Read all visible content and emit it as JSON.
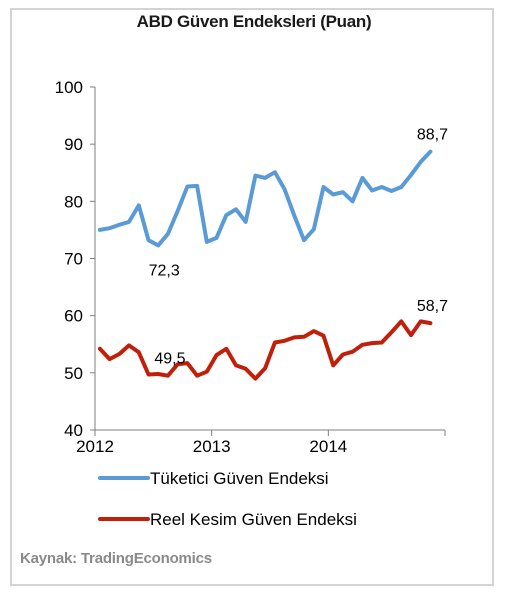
{
  "chart_data": {
    "type": "line",
    "title": "ABD Güven Endeksleri (Puan)",
    "source": "Kaynak: TradingEconomics",
    "ylim": [
      40,
      100
    ],
    "yticks": [
      "40",
      "50",
      "60",
      "70",
      "80",
      "90",
      "100"
    ],
    "xticks": [
      "2012",
      "2013",
      "2014"
    ],
    "grid": false,
    "legend_position": "bottom",
    "x": [
      "2012-01",
      "2012-02",
      "2012-03",
      "2012-04",
      "2012-05",
      "2012-06",
      "2012-07",
      "2012-08",
      "2012-09",
      "2012-10",
      "2012-11",
      "2012-12",
      "2013-01",
      "2013-02",
      "2013-03",
      "2013-04",
      "2013-05",
      "2013-06",
      "2013-07",
      "2013-08",
      "2013-09",
      "2013-10",
      "2013-11",
      "2013-12",
      "2014-01",
      "2014-02",
      "2014-03",
      "2014-04",
      "2014-05",
      "2014-06",
      "2014-07",
      "2014-08",
      "2014-09",
      "2014-10",
      "2014-11",
      "2014-12"
    ],
    "series": [
      {
        "name": "Tüketici Güven Endeksi",
        "color": "#5b9bd5",
        "values": [
          75.0,
          75.3,
          75.9,
          76.4,
          79.3,
          73.2,
          72.3,
          74.3,
          78.3,
          82.6,
          82.7,
          72.9,
          73.6,
          77.6,
          78.6,
          76.4,
          84.5,
          84.1,
          85.1,
          82.1,
          77.5,
          73.2,
          75.1,
          82.5,
          81.2,
          81.6,
          80.0,
          84.1,
          81.9,
          82.5,
          81.8,
          82.5,
          84.6,
          86.9,
          88.7,
          null
        ],
        "annotations": [
          {
            "index": 6,
            "text": "72,3"
          },
          {
            "index": 34,
            "text": "88,7"
          }
        ]
      },
      {
        "name": "Reel Kesim Güven Endeksi",
        "color": "#c0200a",
        "values": [
          54.2,
          52.4,
          53.3,
          54.8,
          53.6,
          49.7,
          49.8,
          49.5,
          51.5,
          51.7,
          49.5,
          50.2,
          53.1,
          54.2,
          51.3,
          50.7,
          49.0,
          50.8,
          55.3,
          55.6,
          56.2,
          56.3,
          57.3,
          56.5,
          51.3,
          53.2,
          53.7,
          54.9,
          55.2,
          55.3,
          57.1,
          59.0,
          56.6,
          59.0,
          58.7,
          null
        ],
        "annotations": [
          {
            "index": 7,
            "text": "49,5"
          },
          {
            "index": 34,
            "text": "58,7"
          }
        ]
      }
    ]
  }
}
